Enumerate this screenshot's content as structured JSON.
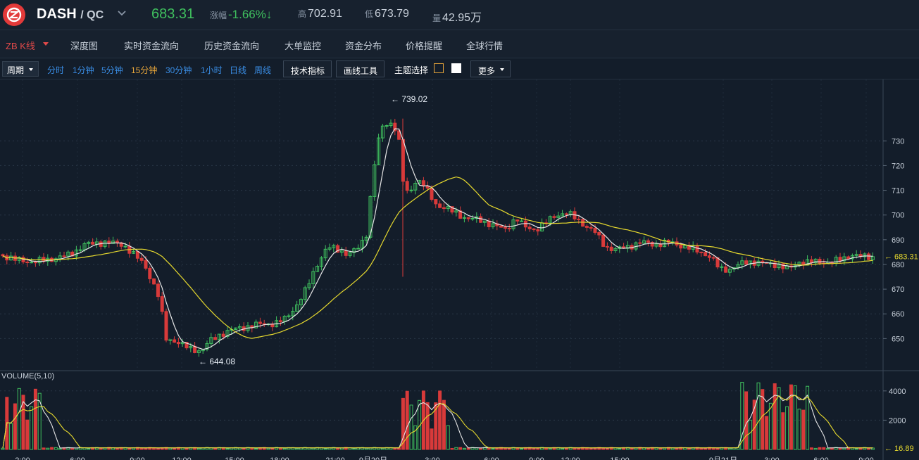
{
  "header": {
    "pair": "DASH",
    "quote": "/ QC",
    "price": "683.31",
    "change_label": "涨幅",
    "change_value": "-1.66%↓",
    "high_label": "高",
    "high_value": "702.91",
    "low_label": "低",
    "low_value": "673.79",
    "volume_label": "量",
    "volume_value": "42.95万"
  },
  "nav": {
    "items": [
      "ZB K线",
      "深度图",
      "实时资金流向",
      "历史资金流向",
      "大单监控",
      "资金分布",
      "价格提醒",
      "全球行情"
    ]
  },
  "toolbar": {
    "period": "周期",
    "intervals": [
      "分时",
      "1分钟",
      "5分钟",
      "15分钟",
      "30分钟",
      "1小时",
      "日线",
      "周线"
    ],
    "selected": "15分钟",
    "indicators": "技术指标",
    "draw": "画线工具",
    "theme": "主题选择",
    "more": "更多"
  },
  "colors": {
    "up": "#3fbf5e",
    "down": "#d83a3a",
    "ma1": "#e6e6e6",
    "ma2": "#e6d92e",
    "accent": "#e6a53a"
  },
  "chart_data": {
    "type": "candlestick",
    "price_axis": {
      "ticks": [
        650,
        660,
        670,
        680,
        690,
        700,
        710,
        720,
        730
      ],
      "range": [
        641,
        752
      ]
    },
    "max_marker": "739.02",
    "min_marker": "644.08",
    "last_price": "683.31",
    "volume_title": "VOLUME(5,10)",
    "volume_axis": {
      "ticks": [
        2000,
        4000
      ],
      "range": [
        0,
        5000
      ]
    },
    "last_volume": "16.89",
    "x_labels": [
      "2:00",
      "6:00",
      "9:00",
      "12:00",
      "15:00",
      "18:00",
      "21:00",
      "9月20日",
      "3:00",
      "6:00",
      "9:00",
      "12:00",
      "15:00",
      "9月21日",
      "3:00",
      "6:00",
      "9:00"
    ]
  }
}
